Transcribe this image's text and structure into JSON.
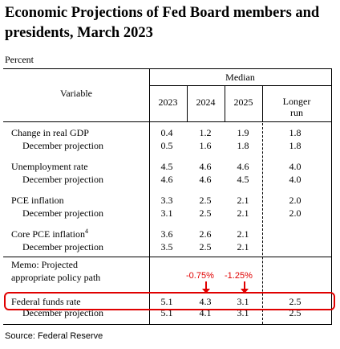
{
  "title": "Economic Projections of Fed Board members and presidents, March 2023",
  "unit_label": "Percent",
  "header": {
    "variable": "Variable",
    "median": "Median",
    "years": [
      "2023",
      "2024",
      "2025"
    ],
    "longer_run_1": "Longer",
    "longer_run_2": "run"
  },
  "rows": [
    {
      "label": "Change in real GDP",
      "values": [
        "0.4",
        "1.2",
        "1.9",
        "1.8"
      ]
    },
    {
      "label": "December projection",
      "values": [
        "0.5",
        "1.6",
        "1.8",
        "1.8"
      ]
    },
    {
      "label": "Unemployment rate",
      "values": [
        "4.5",
        "4.6",
        "4.6",
        "4.0"
      ]
    },
    {
      "label": "December projection",
      "values": [
        "4.6",
        "4.6",
        "4.5",
        "4.0"
      ]
    },
    {
      "label": "PCE inflation",
      "values": [
        "3.3",
        "2.5",
        "2.1",
        "2.0"
      ]
    },
    {
      "label": "December projection",
      "values": [
        "3.1",
        "2.5",
        "2.1",
        "2.0"
      ]
    },
    {
      "label": "Core PCE inflation",
      "footnote": "4",
      "values": [
        "3.6",
        "2.6",
        "2.1",
        ""
      ]
    },
    {
      "label": "December projection",
      "values": [
        "3.5",
        "2.5",
        "2.1",
        ""
      ]
    },
    {
      "label": "Federal funds rate",
      "values": [
        "5.1",
        "4.3",
        "3.1",
        "2.5"
      ]
    },
    {
      "label": "December projection",
      "values": [
        "5.1",
        "4.1",
        "3.1",
        "2.5"
      ]
    }
  ],
  "memo": {
    "line1": "Memo: Projected",
    "line2": "appropriate policy path"
  },
  "annotations": {
    "change_2024": "-0.75%",
    "change_2025": "-1.25%",
    "color": "#e00000"
  },
  "source": "Source: Federal Reserve"
}
